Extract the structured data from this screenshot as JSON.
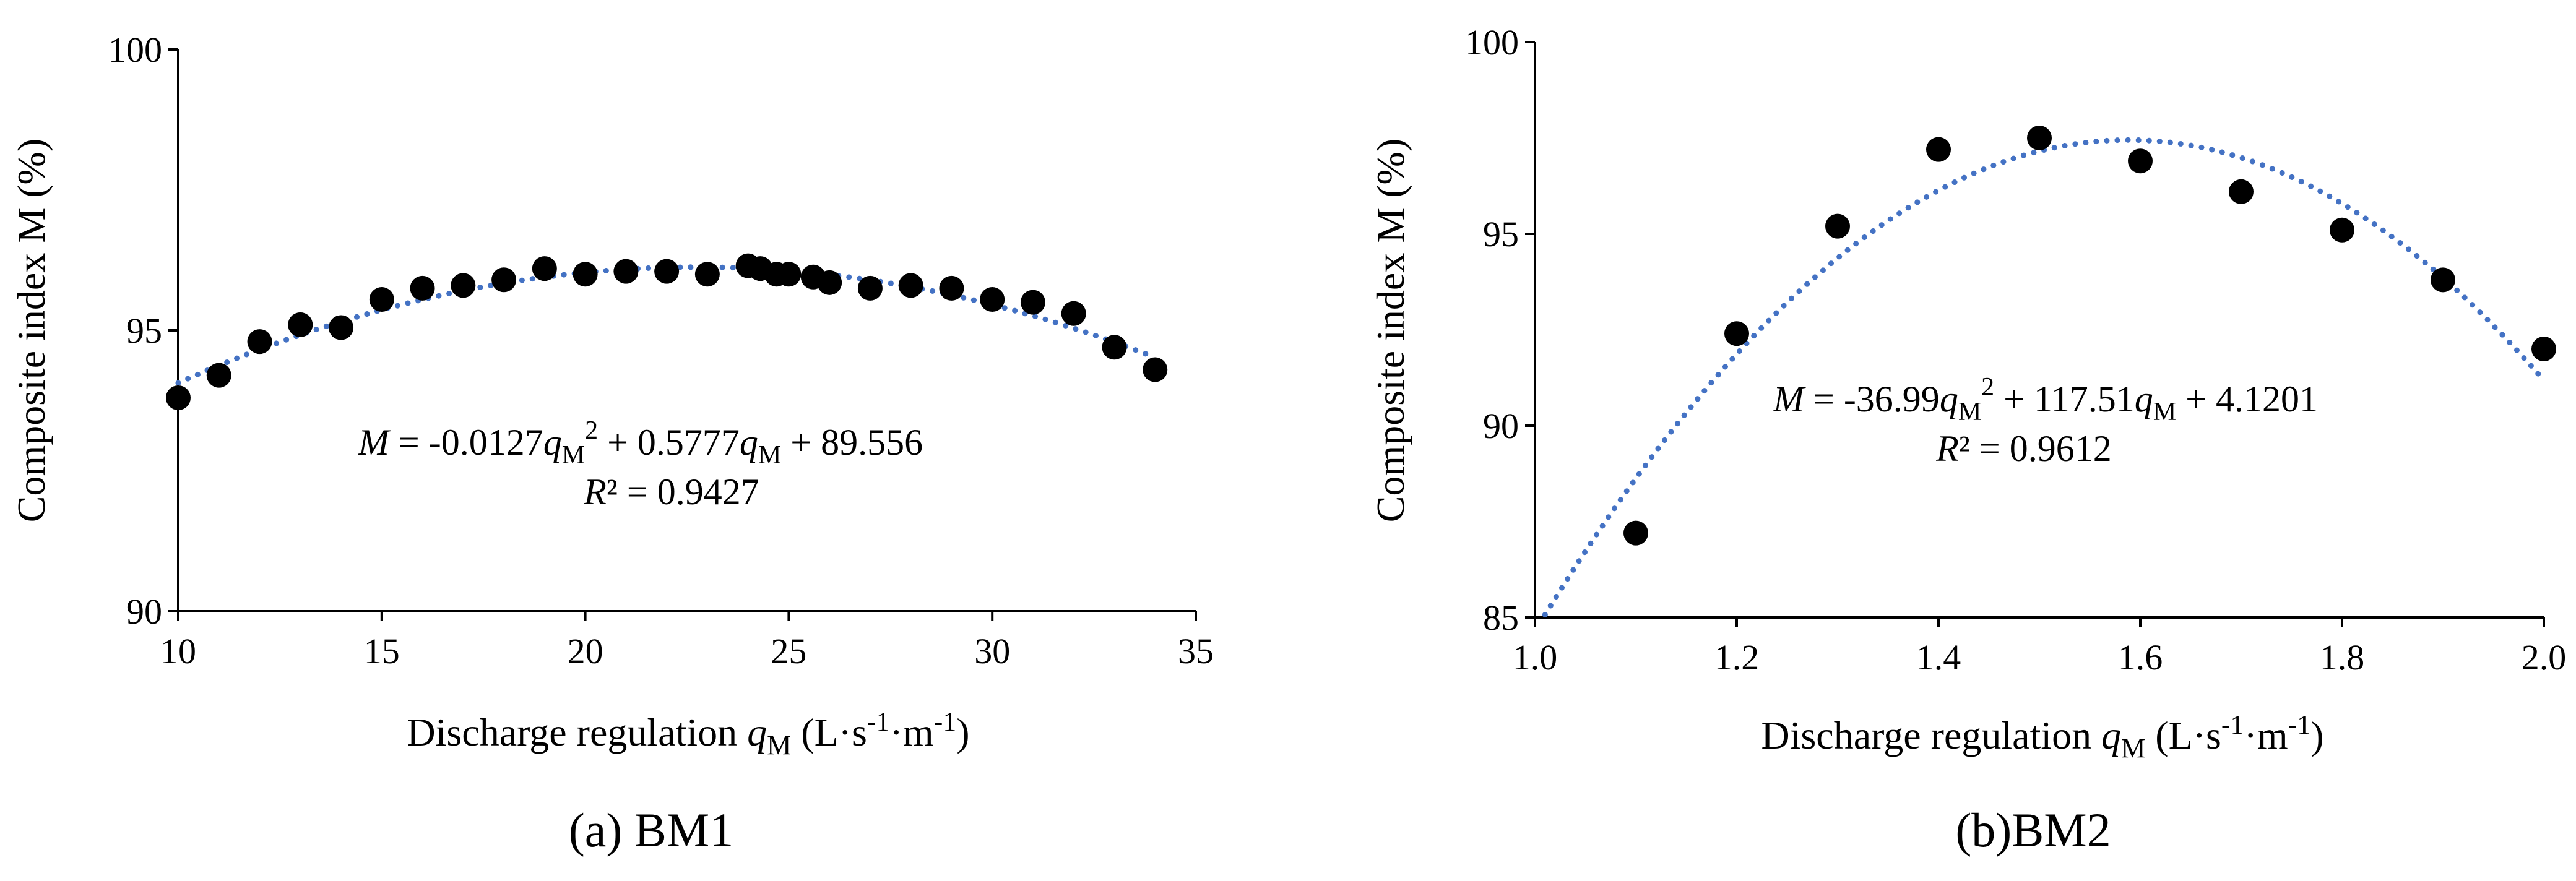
{
  "colors": {
    "points": "#000000",
    "trend": "#4472C4",
    "axis": "#000000"
  },
  "charts": [
    {
      "caption": "(a) BM1",
      "xlabel_pre": "Discharge regulation ",
      "xlabel_var": "q",
      "xlabel_sub": "M",
      "xlabel_unit_pre": " (L·s",
      "xlabel_unit_exp1": "-1",
      "xlabel_unit_mid": "·m",
      "xlabel_unit_exp2": "-1",
      "xlabel_unit_post": ")",
      "ylabel": "Composite index M (%)",
      "equation": {
        "lhs": "M",
        "t1": " = -0.0127",
        "var1": "q",
        "sub1": "M",
        "pow1": "2",
        "t2": " + 0.5777",
        "var2": "q",
        "sub2": "M",
        "t3": " + 89.556",
        "r2_var": "R",
        "r2_rest": "² = 0.9427"
      }
    },
    {
      "caption": "(b)BM2",
      "xlabel_pre": "Discharge regulation ",
      "xlabel_var": "q",
      "xlabel_sub": "M",
      "xlabel_unit_pre": " (L·s",
      "xlabel_unit_exp1": "-1",
      "xlabel_unit_mid": "·m",
      "xlabel_unit_exp2": "-1",
      "xlabel_unit_post": ")",
      "ylabel": "Composite index M (%)",
      "equation": {
        "lhs": "M",
        "t1": " = -36.99",
        "var1": "q",
        "sub1": "M",
        "pow1": "2",
        "t2": " + 117.51",
        "var2": "q",
        "sub2": "M",
        "t3": " + 4.1201",
        "r2_var": "R",
        "r2_rest": "² = 0.9612"
      }
    }
  ],
  "chart_data": [
    {
      "type": "scatter",
      "title": "(a) BM1",
      "xlabel": "Discharge regulation qM (L·s-1·m-1)",
      "ylabel": "Composite index M (%)",
      "xlim": [
        10,
        35
      ],
      "ylim": [
        90,
        100
      ],
      "xticks": [
        10,
        15,
        20,
        25,
        30,
        35
      ],
      "xtick_labels": [
        "10",
        "15",
        "20",
        "25",
        "30",
        "35"
      ],
      "yticks": [
        90,
        95,
        100
      ],
      "ytick_labels": [
        "90",
        "95",
        "100"
      ],
      "x": [
        10,
        11,
        12,
        13,
        14,
        15,
        16,
        17,
        18,
        19,
        20,
        21,
        22,
        23,
        24,
        24.3,
        24.7,
        25,
        25.6,
        26,
        27,
        28,
        29,
        30,
        31,
        32,
        33,
        34
      ],
      "y": [
        93.8,
        94.2,
        94.8,
        95.1,
        95.05,
        95.55,
        95.75,
        95.8,
        95.9,
        96.1,
        96.0,
        96.05,
        96.05,
        96.0,
        96.15,
        96.1,
        96.0,
        96.0,
        95.95,
        95.85,
        95.75,
        95.8,
        95.75,
        95.55,
        95.5,
        95.3,
        94.7,
        94.3
      ],
      "trendline": {
        "type": "polynomial",
        "order": 2,
        "a": -0.0127,
        "b": 0.5777,
        "c": 89.556,
        "r2": 0.9427,
        "xrange": [
          10,
          34
        ]
      },
      "grid": false,
      "legend": "none"
    },
    {
      "type": "scatter",
      "title": "(b)BM2",
      "xlabel": "Discharge regulation qM (L·s-1·m-1)",
      "ylabel": "Composite index M (%)",
      "xlim": [
        1.0,
        2.0
      ],
      "ylim": [
        85,
        100
      ],
      "xticks": [
        1.0,
        1.2,
        1.4,
        1.6,
        1.8,
        2.0
      ],
      "xtick_labels": [
        "1.0",
        "1.2",
        "1.4",
        "1.6",
        "1.8",
        "2.0"
      ],
      "yticks": [
        85,
        90,
        95,
        100
      ],
      "ytick_labels": [
        "85",
        "90",
        "95",
        "100"
      ],
      "x": [
        1.1,
        1.2,
        1.3,
        1.4,
        1.5,
        1.6,
        1.7,
        1.8,
        1.9,
        2.0
      ],
      "y": [
        87.2,
        92.4,
        95.2,
        97.2,
        97.5,
        96.9,
        96.1,
        95.1,
        93.8,
        92.0
      ],
      "trendline": {
        "type": "polynomial",
        "order": 2,
        "a": -36.99,
        "b": 117.51,
        "c": 4.1201,
        "r2": 0.9612,
        "xrange": [
          1.01,
          2.0
        ]
      },
      "grid": false,
      "legend": "none"
    }
  ]
}
